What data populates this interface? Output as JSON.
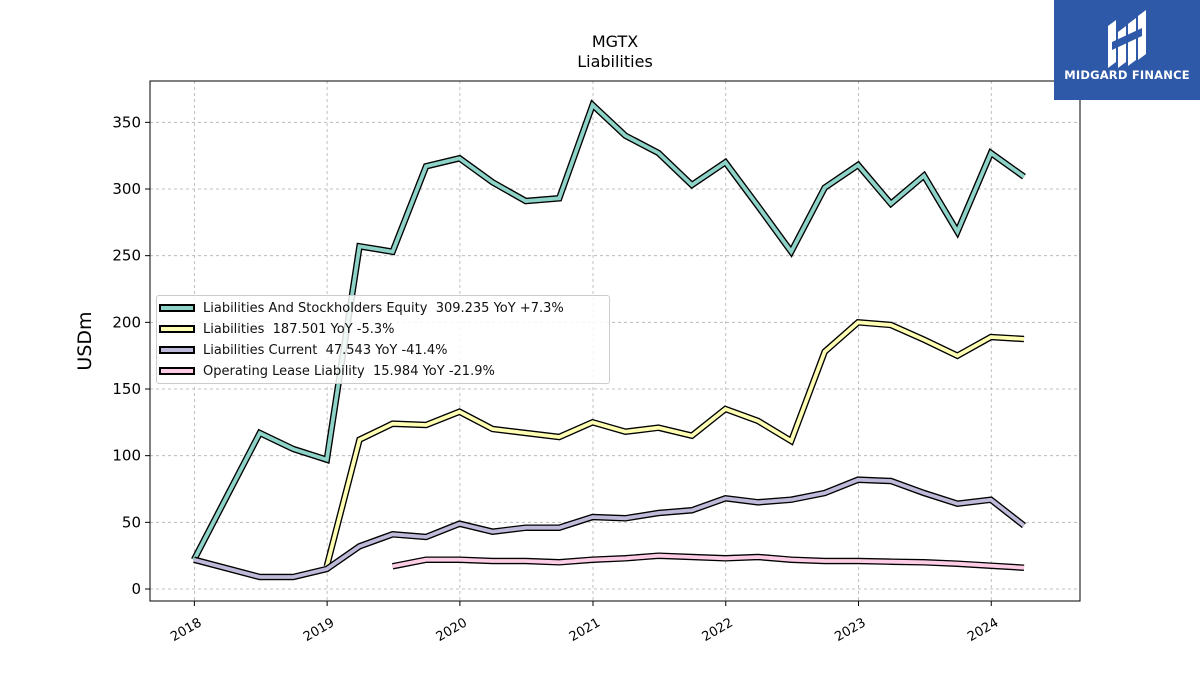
{
  "header": {
    "title": "MGTX",
    "subtitle": "Liabilities"
  },
  "logo": {
    "text": "MIDGARD FINANCE",
    "color": "#2e58a8"
  },
  "chart_data": {
    "type": "line",
    "ylabel": "USDm",
    "xlabel": "",
    "ylim": [
      -9,
      381
    ],
    "xlim": [
      "2017-09",
      "2024-09"
    ],
    "grid": true,
    "legend_position": "center-left",
    "y_ticks": [
      0,
      50,
      100,
      150,
      200,
      250,
      300,
      350
    ],
    "x_ticks": [
      "2018",
      "2019",
      "2020",
      "2021",
      "2022",
      "2023",
      "2024"
    ],
    "x": [
      "2017-12-31",
      "2018-06-30",
      "2018-09-30",
      "2018-12-31",
      "2019-03-31",
      "2019-06-30",
      "2019-09-30",
      "2019-12-31",
      "2020-03-31",
      "2020-06-30",
      "2020-09-30",
      "2020-12-31",
      "2021-03-31",
      "2021-06-30",
      "2021-09-30",
      "2021-12-31",
      "2022-03-31",
      "2022-06-30",
      "2022-09-30",
      "2022-12-31",
      "2023-03-31",
      "2023-06-30",
      "2023-09-30",
      "2023-12-31",
      "2024-03-31"
    ],
    "series": [
      {
        "name": "Liabilities And Stockholders Equity  309.235 YoY +7.3%",
        "color": "#8dd3c7",
        "values": [
          22,
          117,
          105,
          97,
          257,
          253,
          317,
          323,
          305,
          291,
          293,
          363,
          340,
          327,
          303,
          320,
          287,
          253,
          301,
          318,
          289,
          310,
          268,
          327,
          309.235
        ]
      },
      {
        "name": "Liabilities  187.501 YoY -5.3%",
        "color": "#ffffb3",
        "values": [
          null,
          null,
          null,
          17,
          112,
          124,
          123,
          133,
          120,
          117,
          114,
          125,
          118,
          121,
          115,
          135,
          126,
          111,
          178,
          200,
          198,
          187,
          175,
          189,
          187.501
        ]
      },
      {
        "name": "Liabilities Current  47.543 YoY -41.4%",
        "color": "#bebada",
        "values": [
          22,
          9,
          9,
          15,
          32,
          41,
          39,
          49,
          43,
          46,
          46,
          54,
          53,
          57,
          59,
          68,
          65,
          67,
          72,
          82,
          81,
          72,
          64,
          67,
          47.543
        ]
      },
      {
        "name": "Operating Lease Liability  15.984 YoY -21.9%",
        "color": "#fccde5",
        "values": [
          null,
          null,
          null,
          null,
          null,
          17,
          22,
          22,
          21,
          21,
          20,
          22,
          23,
          25,
          24,
          23,
          24,
          22,
          21,
          21,
          20.5,
          20,
          19,
          17.5,
          15.984
        ]
      }
    ]
  }
}
